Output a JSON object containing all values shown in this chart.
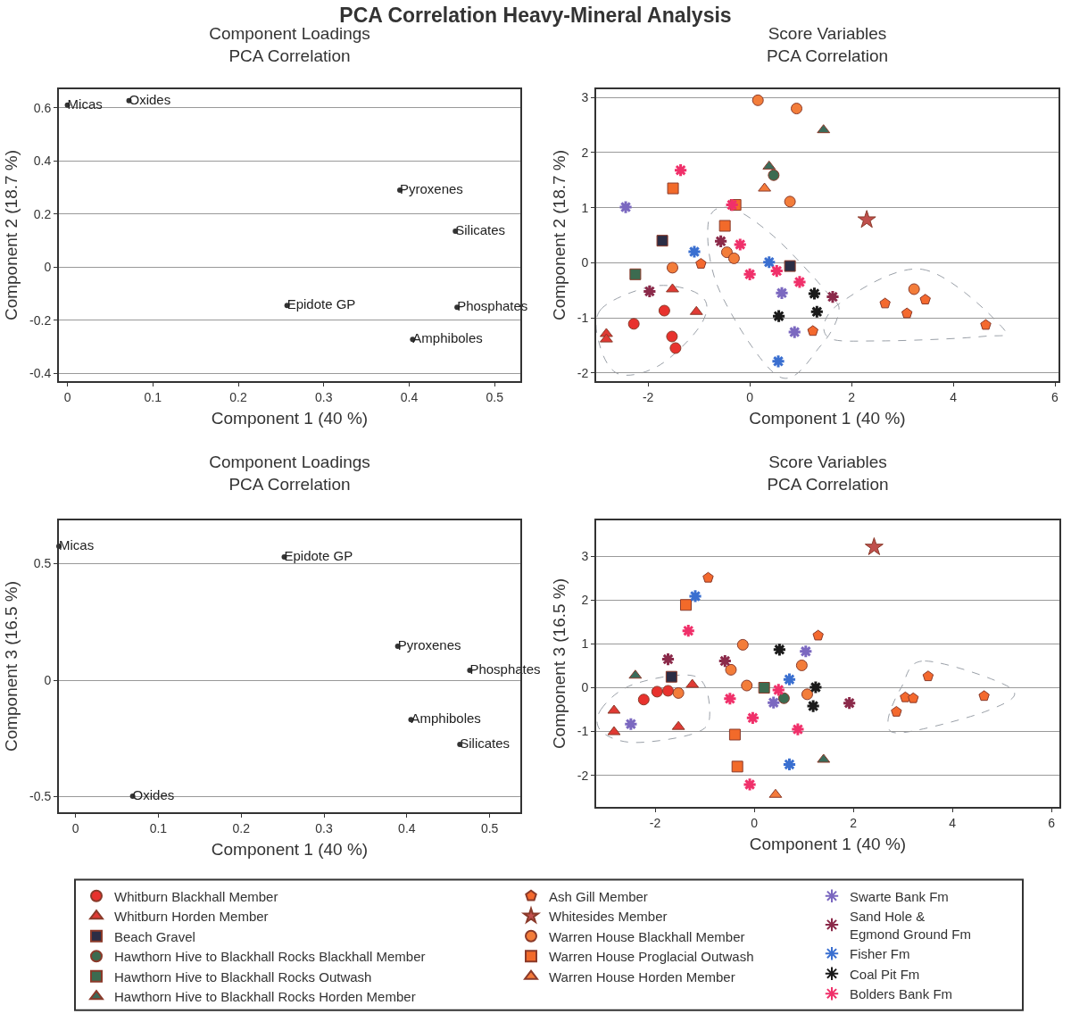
{
  "chart_data": [
    {
      "type": "scatter",
      "title": "Component Loadings\nPCA Correlation",
      "xlabel": "Component 1 (40 %)",
      "ylabel": "Component 2 (18.7 %)",
      "grid": "y",
      "annotations": [
        "PCA Correlation Heavy-Mineral Analysis"
      ],
      "series": [
        {
          "color": "#333333",
          "marker": "circle",
          "x": [
            0.0,
            0.072,
            0.389,
            0.454,
            0.257,
            0.456,
            0.404
          ],
          "values": [
            0.61,
            0.627,
            0.29,
            0.135,
            -0.145,
            -0.152,
            -0.273
          ],
          "value_labels": [
            "Micas",
            "Oxides",
            "Pyroxenes",
            "Silicates",
            "Epidote GP",
            "Phosphates",
            "Amphiboles"
          ]
        }
      ],
      "xlim": [
        -0.01,
        0.53
      ],
      "xticks": [
        0,
        0.1,
        0.2,
        0.3,
        0.4,
        0.5
      ],
      "ylim": [
        -0.43,
        0.67
      ],
      "yticks": [
        -0.4,
        -0.2,
        0,
        0.2,
        0.4,
        0.6
      ]
    },
    {
      "type": "scatter",
      "title": "Score Variables\nPCA Correlation",
      "xlabel": "Component 1 (40 %)",
      "ylabel": "Component 2 (18.7 %)",
      "grid": "y",
      "legend": false,
      "xlim": [
        -3.02,
        6.07
      ],
      "xticks": [
        -2,
        0,
        2,
        4,
        6
      ],
      "ylim": [
        -2.15,
        3.15
      ],
      "yticks": [
        -2,
        -1,
        0,
        1,
        2,
        3
      ],
      "series": [
        {
          "color": "#e8322d",
          "marker": "circle",
          "x": [
            -1.68,
            -2.28,
            -1.53,
            -1.46
          ],
          "values": [
            -0.87,
            -1.11,
            -1.34,
            -1.55
          ]
        },
        {
          "color": "#e03a34",
          "marker": "triangle",
          "x": [
            -2.82,
            -2.82,
            -1.52,
            -1.05
          ],
          "values": [
            -1.29,
            -1.39,
            -0.48,
            -0.89
          ]
        },
        {
          "color": "#2b2d45",
          "marker": "square",
          "x": [
            -1.72,
            0.79
          ],
          "values": [
            0.4,
            -0.06
          ]
        },
        {
          "color": "#3c6b50",
          "marker": "circle",
          "x": [
            0.47
          ],
          "values": [
            1.59
          ]
        },
        {
          "color": "#3c6b50",
          "marker": "square",
          "x": [
            -2.25
          ],
          "values": [
            -0.21
          ]
        },
        {
          "color": "#3b6b5a",
          "marker": "triangle",
          "x": [
            0.38,
            1.45
          ],
          "values": [
            1.75,
            2.41
          ]
        },
        {
          "color": "#f4692e",
          "x": [
            -0.96,
            1.24,
            2.66,
            3.45,
            3.09,
            4.64
          ],
          "values": [
            -0.02,
            -1.24,
            -0.74,
            -0.67,
            -0.92,
            -1.13
          ]
        },
        {
          "color": "#c0504d",
          "marker": "star",
          "x": [
            2.3
          ],
          "values": [
            0.78
          ]
        },
        {
          "color": "#f37d3a",
          "marker": "circle",
          "x": [
            0.16,
            0.92,
            0.79,
            -1.52,
            -0.45,
            -0.31,
            3.23
          ],
          "values": [
            2.95,
            2.8,
            1.11,
            -0.09,
            0.19,
            0.08,
            -0.48
          ]
        },
        {
          "color": "#f26a2a",
          "marker": "square",
          "x": [
            -1.51,
            -0.28,
            -0.49
          ],
          "values": [
            1.35,
            1.05,
            0.67
          ]
        },
        {
          "color": "#f47a3a",
          "marker": "triangle",
          "x": [
            0.29
          ],
          "values": [
            1.35
          ]
        },
        {
          "color": "#7b68c0",
          "marker": "cross",
          "x": [
            -2.44,
            0.63,
            0.88
          ],
          "values": [
            1.01,
            -0.55,
            -1.26
          ]
        },
        {
          "color": "#8b2a4a",
          "marker": "cross",
          "x": [
            -1.97,
            -0.57,
            1.63
          ],
          "values": [
            -0.52,
            0.39,
            -0.62
          ]
        },
        {
          "color": "#3a6fd0",
          "marker": "cross",
          "x": [
            -1.09,
            0.38,
            0.56
          ],
          "values": [
            0.2,
            0.01,
            -1.79
          ]
        },
        {
          "color": "#1a1a1a",
          "marker": "cross",
          "x": [
            1.27,
            0.57,
            1.32
          ],
          "values": [
            -0.56,
            -0.97,
            -0.89
          ]
        },
        {
          "color": "#f0306a",
          "marker": "cross",
          "x": [
            -1.36,
            -0.35,
            -0.19,
            0.0,
            0.53,
            0.98
          ],
          "values": [
            1.68,
            1.05,
            0.33,
            -0.21,
            -0.15,
            -0.35
          ]
        }
      ]
    },
    {
      "type": "scatter",
      "title": "Component Loadings\nPCA Correlation",
      "xlabel": "Component 1 (40 %)",
      "ylabel": "Component 3 (16.5 %)",
      "grid": "y",
      "series": [
        {
          "color": "#333333",
          "marker": "circle",
          "x": [
            -0.02,
            0.252,
            0.389,
            0.476,
            0.405,
            0.464,
            0.069
          ],
          "values": [
            0.575,
            0.529,
            0.146,
            0.042,
            -0.169,
            -0.276,
            -0.498
          ],
          "value_labels": [
            "Micas",
            "Epidote GP",
            "Pyroxenes",
            "Phosphates",
            "Amphiboles",
            "Silicates",
            "Oxides"
          ]
        }
      ],
      "xlim": [
        -0.02,
        0.537
      ],
      "xticks": [
        0,
        0.1,
        0.2,
        0.3,
        0.4,
        0.5
      ],
      "ylim": [
        -0.567,
        0.686
      ],
      "yticks": [
        -0.5,
        0,
        0.5
      ]
    },
    {
      "type": "scatter",
      "title": "Score Variables\nPCA Correlation",
      "xlabel": "Component 1 (40 %)",
      "ylabel": "Component 3 (16.5 %)",
      "grid": "y",
      "legend": "bottom",
      "xlim": [
        -3.19,
        6.16
      ],
      "xticks": [
        -2,
        0,
        2,
        4,
        6
      ],
      "ylim": [
        -2.72,
        3.82
      ],
      "yticks": [
        -2,
        -1,
        0,
        1,
        2,
        3
      ],
      "series": [
        {
          "name": "Whitburn Blackhall Member",
          "color": "#e8322d",
          "marker": "circle",
          "x": [
            -2.23,
            -1.96,
            -1.74
          ],
          "values": [
            -0.27,
            -0.09,
            -0.07
          ]
        },
        {
          "name": "Whitburn Horden Member",
          "color": "#e03a34",
          "marker": "triangle",
          "x": [
            -2.83,
            -2.83,
            -1.53,
            -1.25
          ],
          "values": [
            -0.52,
            -1.01,
            -0.89,
            0.07
          ]
        },
        {
          "name": "Beach Gravel",
          "color": "#2b2d45",
          "marker": "square",
          "x": [
            -1.67
          ],
          "values": [
            0.25
          ]
        },
        {
          "name": "Hawthorn Hive to Blackhall Rocks Blackhall Member",
          "color": "#3c6b50",
          "marker": "circle",
          "x": [
            0.6
          ],
          "values": [
            -0.24
          ]
        },
        {
          "name": "Hawthorn Hive to Blackhall Rocks Outwash",
          "color": "#3c6b50",
          "marker": "square",
          "x": [
            0.2
          ],
          "values": [
            0.0
          ]
        },
        {
          "name": "Hawthorn Hive to Blackhall Rocks Horden Member",
          "color": "#3b6b5a",
          "marker": "triangle",
          "x": [
            -2.4,
            1.4
          ],
          "values": [
            0.28,
            -1.64
          ]
        },
        {
          "name": "Ash Gill Member",
          "color": "#f4692e",
          "x": [
            -0.93,
            1.29,
            3.51,
            3.05,
            3.21,
            2.87,
            4.64
          ],
          "values": [
            2.51,
            1.19,
            0.26,
            -0.22,
            -0.24,
            -0.55,
            -0.19
          ]
        },
        {
          "name": "Whitesides Member",
          "color": "#c0504d",
          "marker": "star",
          "x": [
            2.42
          ],
          "values": [
            3.21
          ]
        },
        {
          "name": "Warren House Blackhall Member",
          "color": "#f37d3a",
          "marker": "circle",
          "x": [
            -1.53,
            -0.23,
            -0.47,
            -0.15,
            0.96,
            1.07
          ],
          "values": [
            -0.12,
            0.98,
            0.41,
            0.05,
            0.51,
            -0.15
          ]
        },
        {
          "name": "Warren House Proglacial Outwash",
          "color": "#f26a2a",
          "marker": "square",
          "x": [
            -1.38,
            -0.39,
            -0.34
          ],
          "values": [
            1.89,
            -1.07,
            -1.8
          ]
        },
        {
          "name": "Warren House Horden Member",
          "color": "#f47a3a",
          "marker": "triangle",
          "x": [
            0.43
          ],
          "values": [
            -2.44
          ]
        },
        {
          "name": "Swarte Bank Fm",
          "color": "#7b68c0",
          "marker": "cross",
          "x": [
            -2.49,
            0.39,
            1.04
          ],
          "values": [
            -0.83,
            -0.34,
            0.83
          ]
        },
        {
          "name": "Sand Hole & Egmond Ground Fm",
          "color": "#8b2a4a",
          "marker": "cross",
          "x": [
            -1.74,
            -0.59,
            1.92
          ],
          "values": [
            0.65,
            0.61,
            -0.35
          ]
        },
        {
          "name": "Fisher Fm",
          "color": "#3a6fd0",
          "marker": "cross",
          "x": [
            -1.19,
            0.71,
            0.71
          ],
          "values": [
            2.09,
            0.19,
            -1.75
          ]
        },
        {
          "name": "Coal Pit Fm",
          "color": "#1a1a1a",
          "marker": "cross",
          "x": [
            0.51,
            1.24,
            1.19
          ],
          "values": [
            0.87,
            0.01,
            -0.42
          ]
        },
        {
          "name": "Bolders Bank Fm",
          "color": "#f0306a",
          "marker": "cross",
          "x": [
            -1.33,
            -0.49,
            -0.03,
            0.49,
            0.88,
            -0.09
          ],
          "values": [
            1.3,
            -0.25,
            -0.69,
            -0.05,
            -0.95,
            -2.21
          ]
        }
      ]
    }
  ]
}
